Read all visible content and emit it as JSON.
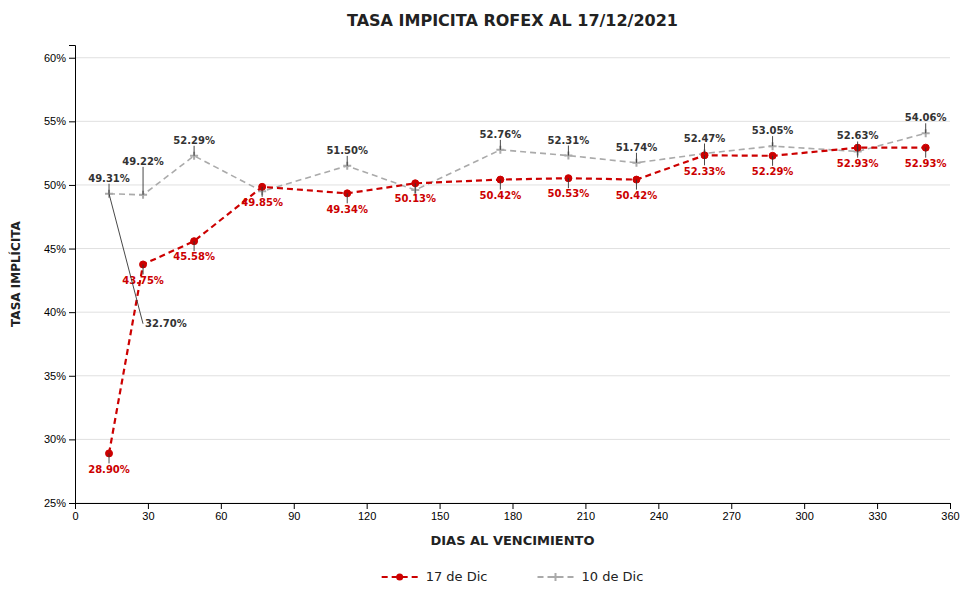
{
  "chart_data": {
    "type": "line",
    "title": "TASA IMPICITA ROFEX AL 17/12/2021",
    "x_label": "DIAS AL VENCIMIENTO",
    "y_label": "TASA IMPLÍCITA",
    "x": [
      14,
      28,
      49,
      77,
      112,
      140,
      175,
      203,
      231,
      259,
      287,
      322,
      350
    ],
    "series": [
      {
        "name": "10 de Dic",
        "color": "#aaaaaa",
        "marker": "plus",
        "line_style": "dashed",
        "data_labels": true,
        "values": [
          0.4931,
          0.4922,
          0.5229,
          0.495,
          0.515,
          0.496,
          0.5276,
          0.5231,
          0.5174,
          0.5247,
          0.5305,
          0.5263,
          0.5406
        ],
        "value_labels": [
          "49.31%",
          "49.22%",
          "52.29%",
          null,
          "51.50%",
          null,
          "52.76%",
          "52.31%",
          "51.74%",
          "52.47%",
          "53.05%",
          "52.63%",
          "54.06%"
        ]
      },
      {
        "name": "17 de Dic",
        "color": "#cc0000",
        "marker": "circle",
        "line_style": "dashed",
        "data_labels": true,
        "values": [
          0.289,
          0.4375,
          0.4558,
          0.4985,
          0.4934,
          0.5013,
          0.5042,
          0.5053,
          0.5042,
          0.5233,
          0.5229,
          0.5293,
          0.5293
        ],
        "value_labels": [
          "28.90%",
          "43.75%",
          "45.58%",
          "49.85%",
          "49.34%",
          "50.13%",
          "50.42%",
          "50.53%",
          "50.42%",
          "52.33%",
          "52.29%",
          "52.93%",
          "52.93%"
        ]
      }
    ],
    "annotations": [
      {
        "text": "32.70%",
        "x": 14,
        "y": 0.4931
      }
    ],
    "xlim": [
      0,
      360
    ],
    "ylim": [
      0.25,
      0.61
    ],
    "xticks": [
      0,
      30,
      60,
      90,
      120,
      150,
      180,
      210,
      240,
      270,
      300,
      330,
      360
    ],
    "yticks": [
      {
        "value": 0.25,
        "label": "25%"
      },
      {
        "value": 0.3,
        "label": "30%"
      },
      {
        "value": 0.35,
        "label": "35%"
      },
      {
        "value": 0.4,
        "label": "40%"
      },
      {
        "value": 0.45,
        "label": "45%"
      },
      {
        "value": 0.5,
        "label": "50%"
      },
      {
        "value": 0.55,
        "label": "55%"
      },
      {
        "value": 0.6,
        "label": "60%"
      }
    ],
    "grid": true,
    "legend": "bottom"
  }
}
